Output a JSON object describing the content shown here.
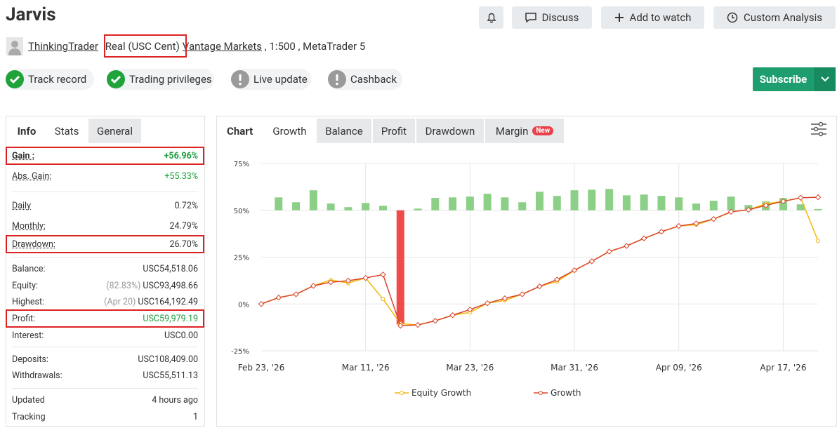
{
  "header": {
    "title": "Jarvis",
    "buttons": [
      "Discuss",
      "Add to watch",
      "Custom Analysis"
    ],
    "author": "ThinkingTrader",
    "account_type": "Real (USC Cent)",
    "broker": "Vantage Markets",
    "details": ", 1:500 , MetaTrader 5"
  },
  "badges": [
    {
      "label": "Track record",
      "ok": true
    },
    {
      "label": "Trading privileges",
      "ok": true
    },
    {
      "label": "Live update",
      "ok": false
    },
    {
      "label": "Cashback",
      "ok": false
    }
  ],
  "subscribe": "Subscribe",
  "info_tabs": [
    "Info",
    "Stats",
    "General"
  ],
  "stats": [
    [
      {
        "label": "Gain :",
        "value": "+56.96%",
        "positive": true,
        "highlight": true,
        "bold": true
      },
      {
        "label": "Abs. Gain:",
        "value": "+55.33%",
        "positive": true
      }
    ],
    [
      {
        "label": "Daily",
        "value": "0.72%"
      },
      {
        "label": "Monthly:",
        "value": "24.79%"
      },
      {
        "label": "Drawdown:",
        "value": "26.70%",
        "highlight": true
      }
    ],
    [
      {
        "label": "Balance:",
        "value": "USC54,518.06"
      },
      {
        "label": "Equity:",
        "note": "(82.83%)",
        "value": "USC93,498.66"
      },
      {
        "label": "Highest:",
        "note": "(Apr 20)",
        "value": "USC164,192.49"
      },
      {
        "label": "Profit:",
        "value": "USC59,979.19",
        "positive": true,
        "highlight": true
      },
      {
        "label": "Interest:",
        "value": "USC0.00"
      }
    ],
    [
      {
        "label": "Deposits:",
        "value": "USC108,409.00"
      },
      {
        "label": "Withdrawals:",
        "value": "USC55,511.13"
      }
    ],
    [
      {
        "label": "Updated",
        "value": "4 hours ago"
      },
      {
        "label": "Tracking",
        "value": "1"
      }
    ]
  ],
  "chart_heading": "Chart",
  "chart_tabs": [
    "Growth",
    "Balance",
    "Profit",
    "Drawdown",
    "Margin"
  ],
  "new_badge": "New",
  "chart_data": {
    "type": "line",
    "categories": [
      "Feb 23, '26",
      null,
      null,
      null,
      null,
      null,
      "Mar 11, '26",
      null,
      null,
      null,
      null,
      null,
      "Mar 23, '26",
      null,
      null,
      null,
      null,
      null,
      "Mar 31, '26",
      null,
      null,
      null,
      null,
      null,
      "Apr 09, '26",
      null,
      null,
      null,
      null,
      null,
      "Apr 17, '26",
      null,
      null
    ],
    "series": [
      {
        "name": "Equity Growth",
        "color": "#f2b705",
        "values": [
          0,
          3.4,
          5.2,
          9.7,
          12.8,
          11.2,
          13.9,
          2.6,
          -10.5,
          -11.2,
          -9,
          -6,
          -4.5,
          0.4,
          1.9,
          5.2,
          9.4,
          12,
          18,
          22.8,
          28,
          31,
          35,
          38.6,
          41.6,
          42.3,
          45.3,
          49.2,
          50.3,
          53.5,
          54.8,
          56.7,
          33.7
        ]
      },
      {
        "name": "Growth",
        "color": "#d9442a",
        "values": [
          0,
          3.4,
          5.2,
          9.7,
          11.6,
          12.4,
          13.9,
          15.7,
          -11.6,
          -11.2,
          -9,
          -6,
          -3,
          0.4,
          3,
          5.2,
          9.4,
          13,
          18,
          22.8,
          28,
          31,
          35,
          38.6,
          41.6,
          43,
          45.3,
          49.2,
          50.3,
          52.6,
          54.8,
          56.7,
          56.96
        ]
      }
    ],
    "bars": {
      "base": 50,
      "color": "#8ccf86",
      "negative_color": "#f04a4a",
      "values": [
        null,
        56.9,
        54.3,
        60.7,
        53.6,
        51.7,
        53.9,
        52.4,
        -10.9,
        50.9,
        56.6,
        56.9,
        57.3,
        58.8,
        56.9,
        54.3,
        59.9,
        57.7,
        60.7,
        61,
        61.4,
        58,
        58.4,
        57.7,
        56.9,
        53.6,
        55.1,
        57.3,
        52.8,
        54.7,
        56.6,
        53.2,
        50.7
      ]
    },
    "ylim": [
      -25,
      75
    ],
    "yticks": [
      {
        "value": -25,
        "label": "-25%"
      },
      {
        "value": 0,
        "label": "0%"
      },
      {
        "value": 25,
        "label": "25%"
      },
      {
        "value": 50,
        "label": "50%"
      },
      {
        "value": 75,
        "label": "75%"
      }
    ],
    "grid": true
  }
}
